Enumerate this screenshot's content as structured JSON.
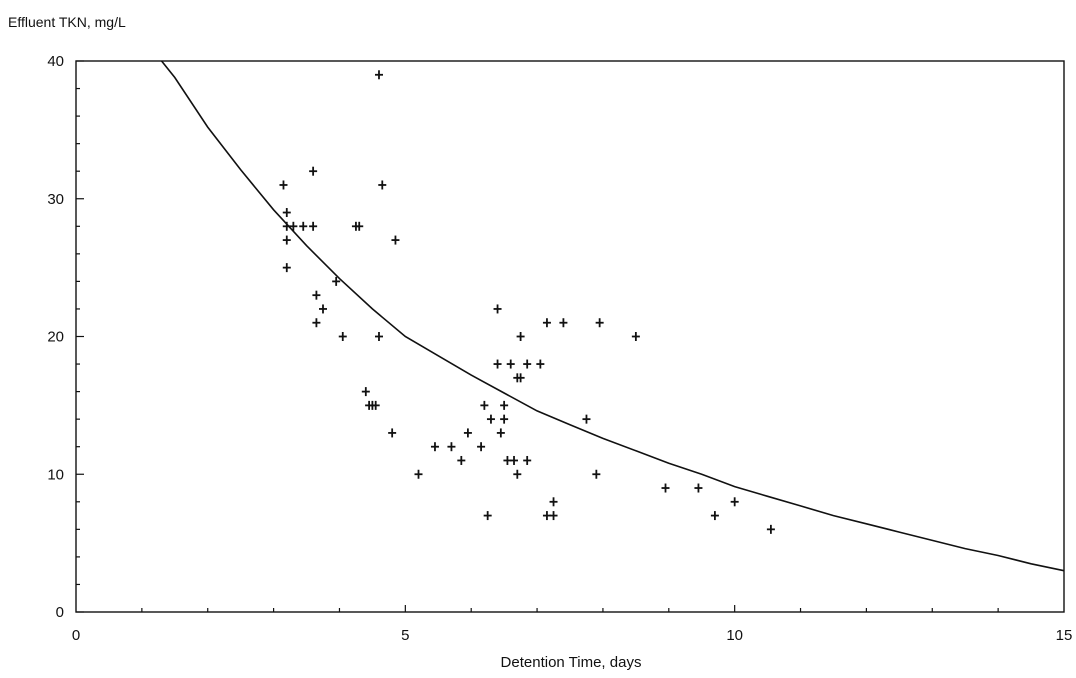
{
  "chart_data": {
    "type": "scatter",
    "title": "",
    "xlabel": "Detention Time, days",
    "ylabel": "Effluent TKN, mg/L",
    "xlim": [
      0,
      15
    ],
    "ylim": [
      0,
      40
    ],
    "x_ticks": [
      0,
      5,
      10,
      15
    ],
    "x_tick_labels": [
      "0",
      "5",
      "10",
      "15"
    ],
    "y_ticks": [
      0,
      10,
      20,
      30,
      40
    ],
    "y_tick_labels": [
      "0",
      "10",
      "20",
      "30",
      "40"
    ],
    "grid": false,
    "legend": "none",
    "colors": {
      "axis": "#111111",
      "marks": "#111111",
      "curve": "#111111"
    },
    "series": [
      {
        "kind": "points",
        "points": [
          [
            3.15,
            31
          ],
          [
            3.2,
            29
          ],
          [
            3.2,
            28
          ],
          [
            3.2,
            27
          ],
          [
            3.2,
            25
          ],
          [
            3.3,
            28
          ],
          [
            3.45,
            28
          ],
          [
            3.6,
            28
          ],
          [
            3.6,
            32
          ],
          [
            3.65,
            23
          ],
          [
            3.65,
            21
          ],
          [
            3.75,
            22
          ],
          [
            3.95,
            24
          ],
          [
            4.05,
            20
          ],
          [
            4.25,
            28
          ],
          [
            4.3,
            28
          ],
          [
            4.4,
            16
          ],
          [
            4.45,
            15
          ],
          [
            4.5,
            15
          ],
          [
            4.55,
            15
          ],
          [
            4.6,
            20
          ],
          [
            4.6,
            39
          ],
          [
            4.65,
            31
          ],
          [
            4.8,
            13
          ],
          [
            4.85,
            27
          ],
          [
            5.2,
            10
          ],
          [
            5.45,
            12
          ],
          [
            5.7,
            12
          ],
          [
            5.85,
            11
          ],
          [
            5.95,
            13
          ],
          [
            6.15,
            12
          ],
          [
            6.2,
            15
          ],
          [
            6.25,
            7
          ],
          [
            6.3,
            14
          ],
          [
            6.4,
            18
          ],
          [
            6.4,
            22
          ],
          [
            6.45,
            13
          ],
          [
            6.5,
            15
          ],
          [
            6.5,
            14
          ],
          [
            6.55,
            11
          ],
          [
            6.6,
            18
          ],
          [
            6.65,
            11
          ],
          [
            6.7,
            10
          ],
          [
            6.7,
            17
          ],
          [
            6.75,
            20
          ],
          [
            6.75,
            17
          ],
          [
            6.85,
            18
          ],
          [
            6.85,
            11
          ],
          [
            7.05,
            18
          ],
          [
            7.15,
            21
          ],
          [
            7.15,
            7
          ],
          [
            7.25,
            8
          ],
          [
            7.25,
            7
          ],
          [
            7.4,
            21
          ],
          [
            7.75,
            14
          ],
          [
            7.9,
            10
          ],
          [
            7.95,
            21
          ],
          [
            8.5,
            20
          ],
          [
            8.95,
            9
          ],
          [
            9.45,
            9
          ],
          [
            9.7,
            7
          ],
          [
            10.0,
            8
          ],
          [
            10.55,
            6
          ]
        ]
      },
      {
        "kind": "curve",
        "points": [
          [
            1.3,
            40
          ],
          [
            1.5,
            38.8
          ],
          [
            2,
            35.2
          ],
          [
            2.5,
            32.1
          ],
          [
            3,
            29.2
          ],
          [
            3.5,
            26.6
          ],
          [
            4,
            24.2
          ],
          [
            4.5,
            22.0
          ],
          [
            5,
            20.0
          ],
          [
            5.5,
            18.6
          ],
          [
            6,
            17.2
          ],
          [
            6.5,
            15.9
          ],
          [
            7,
            14.6
          ],
          [
            7.5,
            13.6
          ],
          [
            8,
            12.6
          ],
          [
            8.5,
            11.7
          ],
          [
            9,
            10.8
          ],
          [
            9.5,
            10.0
          ],
          [
            10,
            9.1
          ],
          [
            10.5,
            8.4
          ],
          [
            11,
            7.7
          ],
          [
            11.5,
            7.0
          ],
          [
            12,
            6.4
          ],
          [
            12.5,
            5.8
          ],
          [
            13,
            5.2
          ],
          [
            13.5,
            4.6
          ],
          [
            14,
            4.1
          ],
          [
            14.5,
            3.5
          ],
          [
            15,
            3.0
          ]
        ]
      }
    ]
  }
}
